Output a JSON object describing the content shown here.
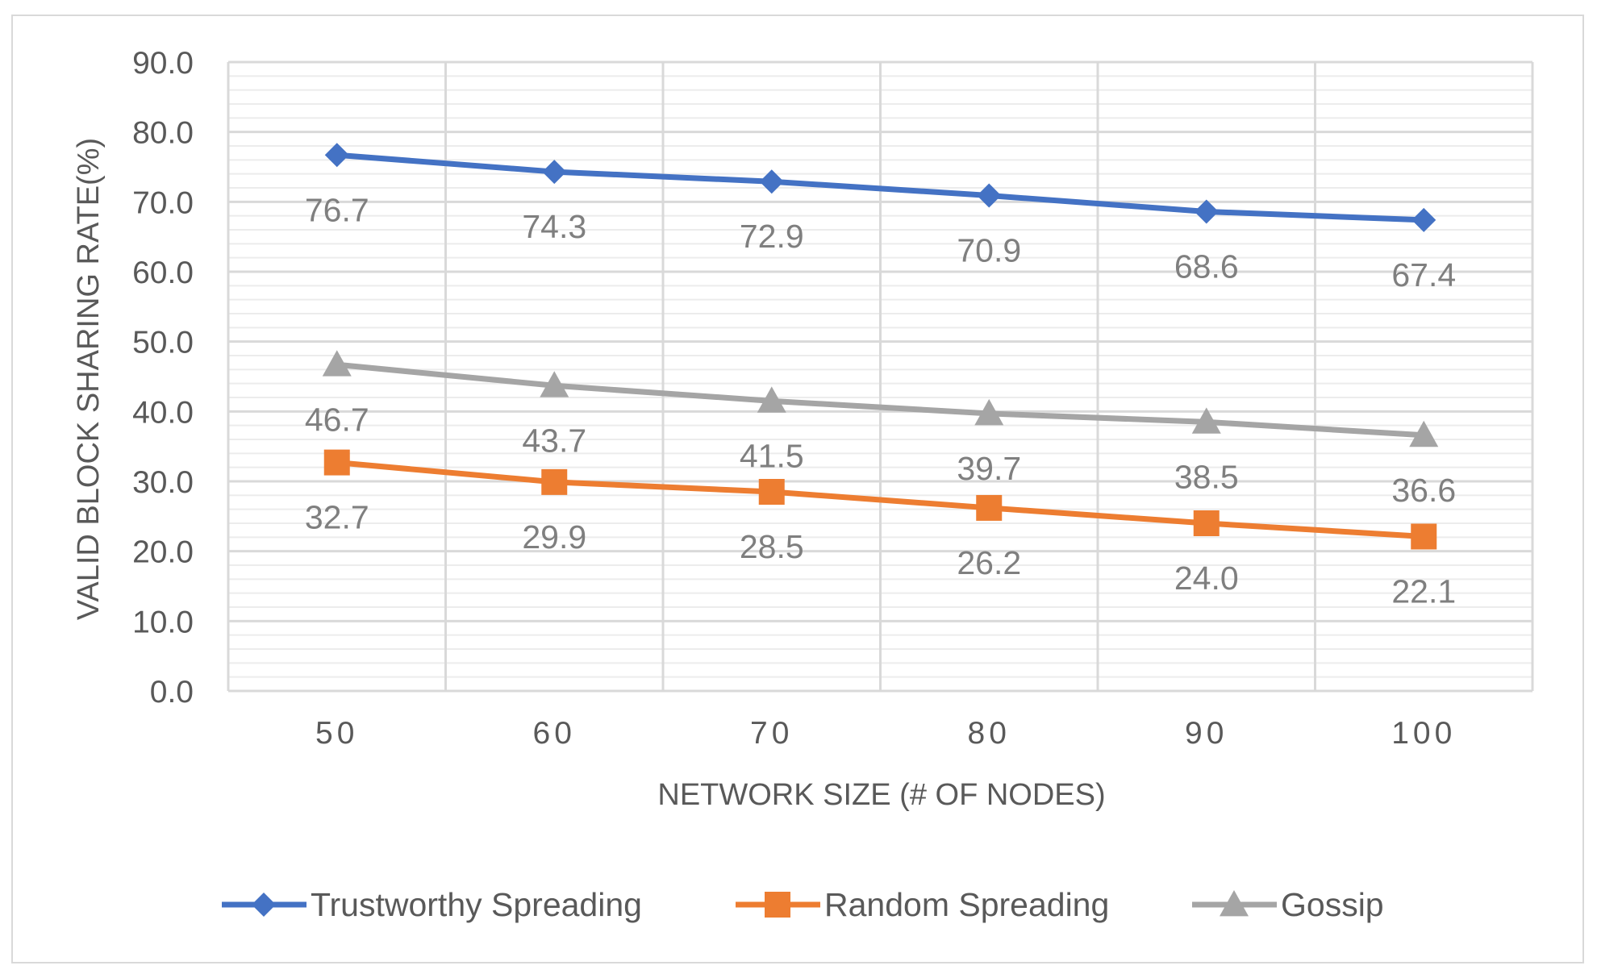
{
  "chart_data": {
    "type": "line",
    "title": "",
    "xlabel": "NETWORK SIZE (# OF NODES)",
    "ylabel": "VALID BLOCK SHARING RATE(%)",
    "categories": [
      "50",
      "60",
      "70",
      "80",
      "90",
      "100"
    ],
    "yticks": [
      "0.0",
      "10.0",
      "20.0",
      "30.0",
      "40.0",
      "50.0",
      "60.0",
      "70.0",
      "80.0",
      "90.0"
    ],
    "ylim": [
      0,
      90
    ],
    "grid": true,
    "legend": "bottom",
    "series": [
      {
        "name": "Trustworthy Spreading",
        "values": [
          76.7,
          74.3,
          72.9,
          70.9,
          68.6,
          67.4
        ],
        "labels": [
          "76.7",
          "74.3",
          "72.9",
          "70.9",
          "68.6",
          "67.4"
        ],
        "color": "#4472c4",
        "marker": "diamond"
      },
      {
        "name": "Random Spreading",
        "values": [
          32.7,
          29.9,
          28.5,
          26.2,
          24.0,
          22.1
        ],
        "labels": [
          "32.7",
          "29.9",
          "28.5",
          "26.2",
          "24.0",
          "22.1"
        ],
        "color": "#ed7d31",
        "marker": "square"
      },
      {
        "name": "Gossip",
        "values": [
          46.7,
          43.7,
          41.5,
          39.7,
          38.5,
          36.6
        ],
        "labels": [
          "46.7",
          "43.7",
          "41.5",
          "39.7",
          "38.5",
          "36.6"
        ],
        "color": "#a5a5a5",
        "marker": "triangle"
      }
    ]
  }
}
